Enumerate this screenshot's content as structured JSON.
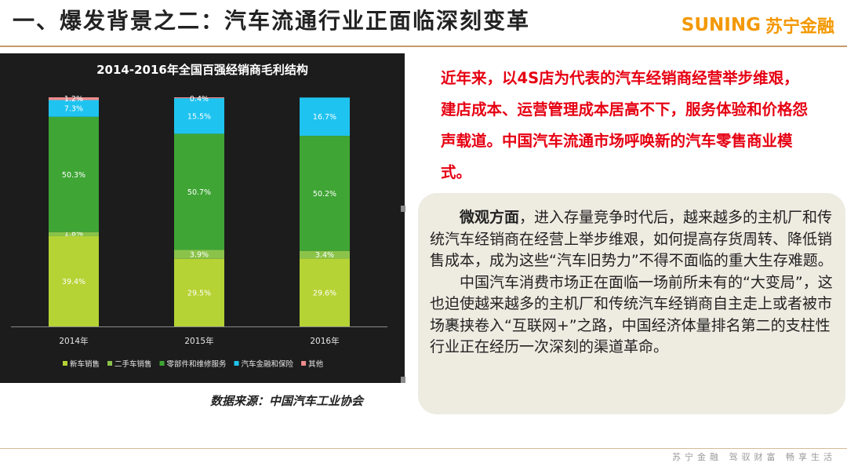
{
  "header": {
    "title": "一、爆发背景之二：汽车流通行业正面临深刻变革",
    "logo_en": "SUNING",
    "logo_cn": "苏宁金融"
  },
  "chart_data": {
    "type": "bar",
    "stacked": true,
    "title": "2014-2016年全国百强经销商毛利结构",
    "categories": [
      "2014年",
      "2015年",
      "2016年"
    ],
    "series": [
      {
        "name": "新车销售",
        "color": "#b5d334",
        "values": [
          39.4,
          29.5,
          29.6
        ],
        "labels": [
          "39.4%",
          "29.5%",
          "29.6%"
        ]
      },
      {
        "name": "二手车销售",
        "color": "#8bc34a",
        "values": [
          1.8,
          3.9,
          3.4
        ],
        "labels": [
          "1.8%",
          "3.9%",
          "3.4%"
        ]
      },
      {
        "name": "零部件和维修服务",
        "color": "#3fa535",
        "values": [
          50.3,
          50.7,
          50.2
        ],
        "labels": [
          "50.3%",
          "50.7%",
          "50.2%"
        ]
      },
      {
        "name": "汽车金融和保险",
        "color": "#1fc3f0",
        "values": [
          7.3,
          15.5,
          16.7
        ],
        "labels": [
          "7.3%",
          "15.5%",
          "16.7%"
        ]
      },
      {
        "name": "其他",
        "color": "#f08c8c",
        "values": [
          1.2,
          0.4,
          0
        ],
        "labels": [
          "1.2%",
          "0.4%",
          ""
        ]
      }
    ],
    "ylim": [
      0,
      100
    ],
    "legend": "bottom",
    "grid": false
  },
  "chart_source": "数据来源：中国汽车工业协会",
  "highlight_text": "近年来，以4S店为代表的汽车经销商经营举步维艰，建店成本、运营管理成本居高不下，服务体验和价格怨声载道。中国汽车流通市场呼唤新的汽车零售商业模式。",
  "description": {
    "p1_lead": "微观方面",
    "p1_rest": "，进入存量竞争时代后，越来越多的主机厂和传统汽车经销商在经营上举步维艰，如何提高存货周转、降低销售成本，成为这些“汽车旧势力”不得不面临的重大生存难题。",
    "p2": "中国汽车消费市场正在面临一场前所未有的“大变局”，这也迫使越来越多的主机厂和传统汽车经销商自主走上或者被市场裹挟卷入“互联网+”之路，中国经济体量排名第二的支柱性行业正在经历一次深刻的渠道革命。"
  },
  "footer": "苏宁金融  驾驭财富  畅享生活"
}
